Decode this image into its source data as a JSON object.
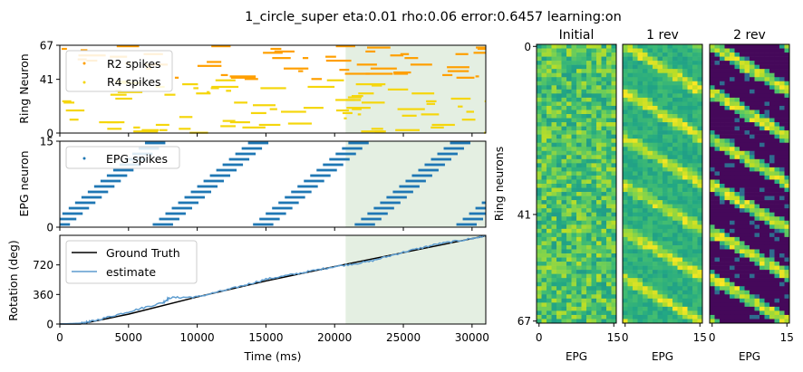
{
  "suptitle": "1_circle_super eta:0.01 rho:0.06 error:0.6457 learning:on",
  "colors": {
    "r2": "#ff9f00",
    "r4": "#f5d60c",
    "epg": "#1f77b4",
    "ground_truth": "#000000",
    "estimate": "#5d9ccf",
    "shade": "#e4efe2"
  },
  "chart_data": [
    {
      "type": "scatter",
      "title": "",
      "xlabel": "",
      "ylabel": "Ring Neuron",
      "xlim": [
        0,
        31000
      ],
      "ylim": [
        0,
        67
      ],
      "yticks": [
        "0",
        "41",
        "67"
      ],
      "shaded_x_range": [
        20800,
        31000
      ],
      "legend": {
        "placement": "top-left",
        "entries": [
          "R2 spikes",
          "R4 spikes"
        ]
      },
      "series": [
        {
          "name": "R2 spikes",
          "neuron_range": [
            41,
            67
          ]
        },
        {
          "name": "R4 spikes",
          "neuron_range": [
            0,
            41
          ]
        }
      ]
    },
    {
      "type": "scatter",
      "title": "",
      "xlabel": "",
      "ylabel": "EPG neuron",
      "xlim": [
        0,
        31000
      ],
      "ylim": [
        0,
        15
      ],
      "yticks": [
        "0",
        "15"
      ],
      "shaded_x_range": [
        20800,
        31000
      ],
      "legend": {
        "placement": "top-left",
        "entries": [
          "EPG spikes"
        ]
      },
      "series": [
        {
          "name": "EPG spikes",
          "sweep_starts_ms": [
            0,
            7500,
            14800,
            22200,
            29600
          ],
          "sweep_duration_ms": 7400
        }
      ]
    },
    {
      "type": "line",
      "title": "",
      "xlabel": "Time (ms)",
      "ylabel": "Rotation (deg)",
      "xlim": [
        0,
        31000
      ],
      "ylim": [
        0,
        1080
      ],
      "xticks": [
        "0",
        "5000",
        "10000",
        "15000",
        "20000",
        "25000",
        "30000"
      ],
      "yticks": [
        "0",
        "360",
        "720"
      ],
      "shaded_x_range": [
        20800,
        31000
      ],
      "legend": {
        "placement": "top-left",
        "entries": [
          "Ground Truth",
          "estimate"
        ]
      },
      "series": [
        {
          "name": "Ground Truth",
          "x": [
            0,
            1500,
            5000,
            10000,
            15000,
            20000,
            25000,
            30000,
            31000
          ],
          "y": [
            0,
            0,
            120,
            330,
            525,
            700,
            870,
            1040,
            1075
          ]
        },
        {
          "name": "estimate",
          "x": [
            0,
            1500,
            2500,
            5000,
            7500,
            8000,
            10000,
            12500,
            15000,
            17500,
            20000,
            22500,
            25000,
            27500,
            30000,
            31000
          ],
          "y": [
            0,
            10,
            40,
            150,
            260,
            320,
            330,
            430,
            545,
            620,
            700,
            760,
            875,
            975,
            1040,
            1075
          ]
        }
      ]
    },
    {
      "type": "heatmap",
      "title": "Initial",
      "xlabel": "EPG",
      "ylabel": "Ring neurons",
      "rows": 68,
      "cols": 16,
      "xticks": [
        "0",
        "15"
      ],
      "yticks": [
        "0",
        "41",
        "67"
      ],
      "pattern": "random",
      "value_range": [
        0.55,
        0.9
      ]
    },
    {
      "type": "heatmap",
      "title": "1 rev",
      "xlabel": "EPG",
      "rows": 68,
      "cols": 16,
      "xticks": [
        "0",
        "15"
      ],
      "pattern": "diagonal",
      "value_range": [
        0.25,
        1
      ]
    },
    {
      "type": "heatmap",
      "title": "2 rev",
      "xlabel": "EPG",
      "rows": 68,
      "cols": 16,
      "xticks": [
        "0",
        "15"
      ],
      "pattern": "diagonal",
      "value_range": [
        0,
        1
      ]
    }
  ]
}
